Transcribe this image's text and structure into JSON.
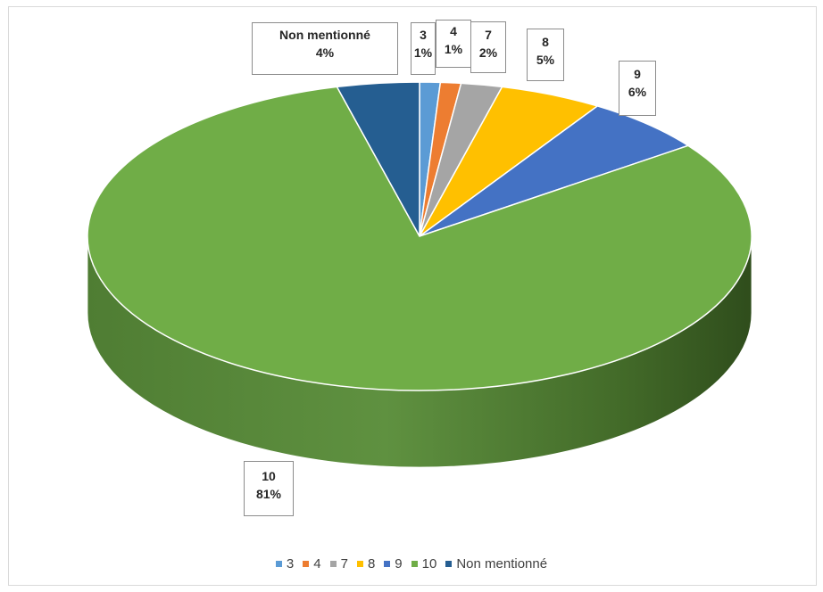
{
  "chart_data": {
    "type": "pie",
    "style": "3d",
    "slices": [
      {
        "label": "3",
        "value": 1,
        "pct_label": "1%",
        "color": "#5b9bd5"
      },
      {
        "label": "4",
        "value": 1,
        "pct_label": "1%",
        "color": "#ed7d31"
      },
      {
        "label": "7",
        "value": 2,
        "pct_label": "2%",
        "color": "#a5a5a5"
      },
      {
        "label": "8",
        "value": 5,
        "pct_label": "5%",
        "color": "#ffc000"
      },
      {
        "label": "9",
        "value": 6,
        "pct_label": "6%",
        "color": "#4472c4"
      },
      {
        "label": "10",
        "value": 81,
        "pct_label": "81%",
        "color": "#70ad47"
      },
      {
        "label": "Non mentionné",
        "value": 4,
        "pct_label": "4%",
        "color": "#255e91"
      }
    ],
    "legend_position": "bottom"
  }
}
